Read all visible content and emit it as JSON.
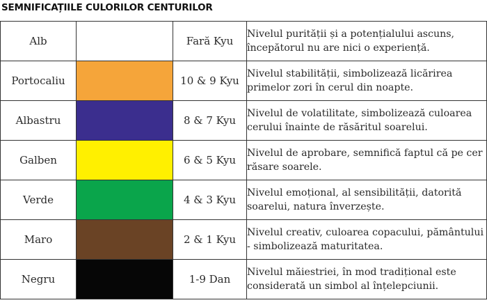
{
  "title": "SEMNIFICAȚIILE CULORILOR CENTURILOR",
  "rows": [
    {
      "name": "Alb",
      "color": "#ffffff",
      "kyu": "Fară Kyu",
      "desc": "Nivelul purității și a potențialului ascuns, începătorul nu are nici o experiență."
    },
    {
      "name": "Portocaliu",
      "color": "#f5a53a",
      "kyu": "10 & 9 Kyu",
      "desc": "Nivelul stabilității, simbolizează licărirea primelor zori în cerul din noapte."
    },
    {
      "name": "Albastru",
      "color": "#3b2e8e",
      "kyu": "8 & 7 Kyu",
      "desc": "Nivelul de volatilitate, simbolizează culoarea cerului înainte de răsăritul soarelui."
    },
    {
      "name": "Galben",
      "color": "#fff000",
      "kyu": "6 & 5 Kyu",
      "desc": "Nivelul de aprobare, semnifică faptul că pe cer răsare soarele."
    },
    {
      "name": "Verde",
      "color": "#0aa54b",
      "kyu": "4 & 3 Kyu",
      "desc": "Nivelul emoțional, al sensibilității, datorită soarelui, natura înverzește."
    },
    {
      "name": "Maro",
      "color": "#6a4325",
      "kyu": "2 & 1 Kyu",
      "desc": "Nivelul creativ, culoarea copacului, pământului - simbolizează maturitatea."
    },
    {
      "name": "Negru",
      "color": "#060606",
      "kyu": "1-9 Dan",
      "desc": "Nivelul măiestriei, în mod tradițional este considerată un simbol al înțelepciunii."
    }
  ]
}
